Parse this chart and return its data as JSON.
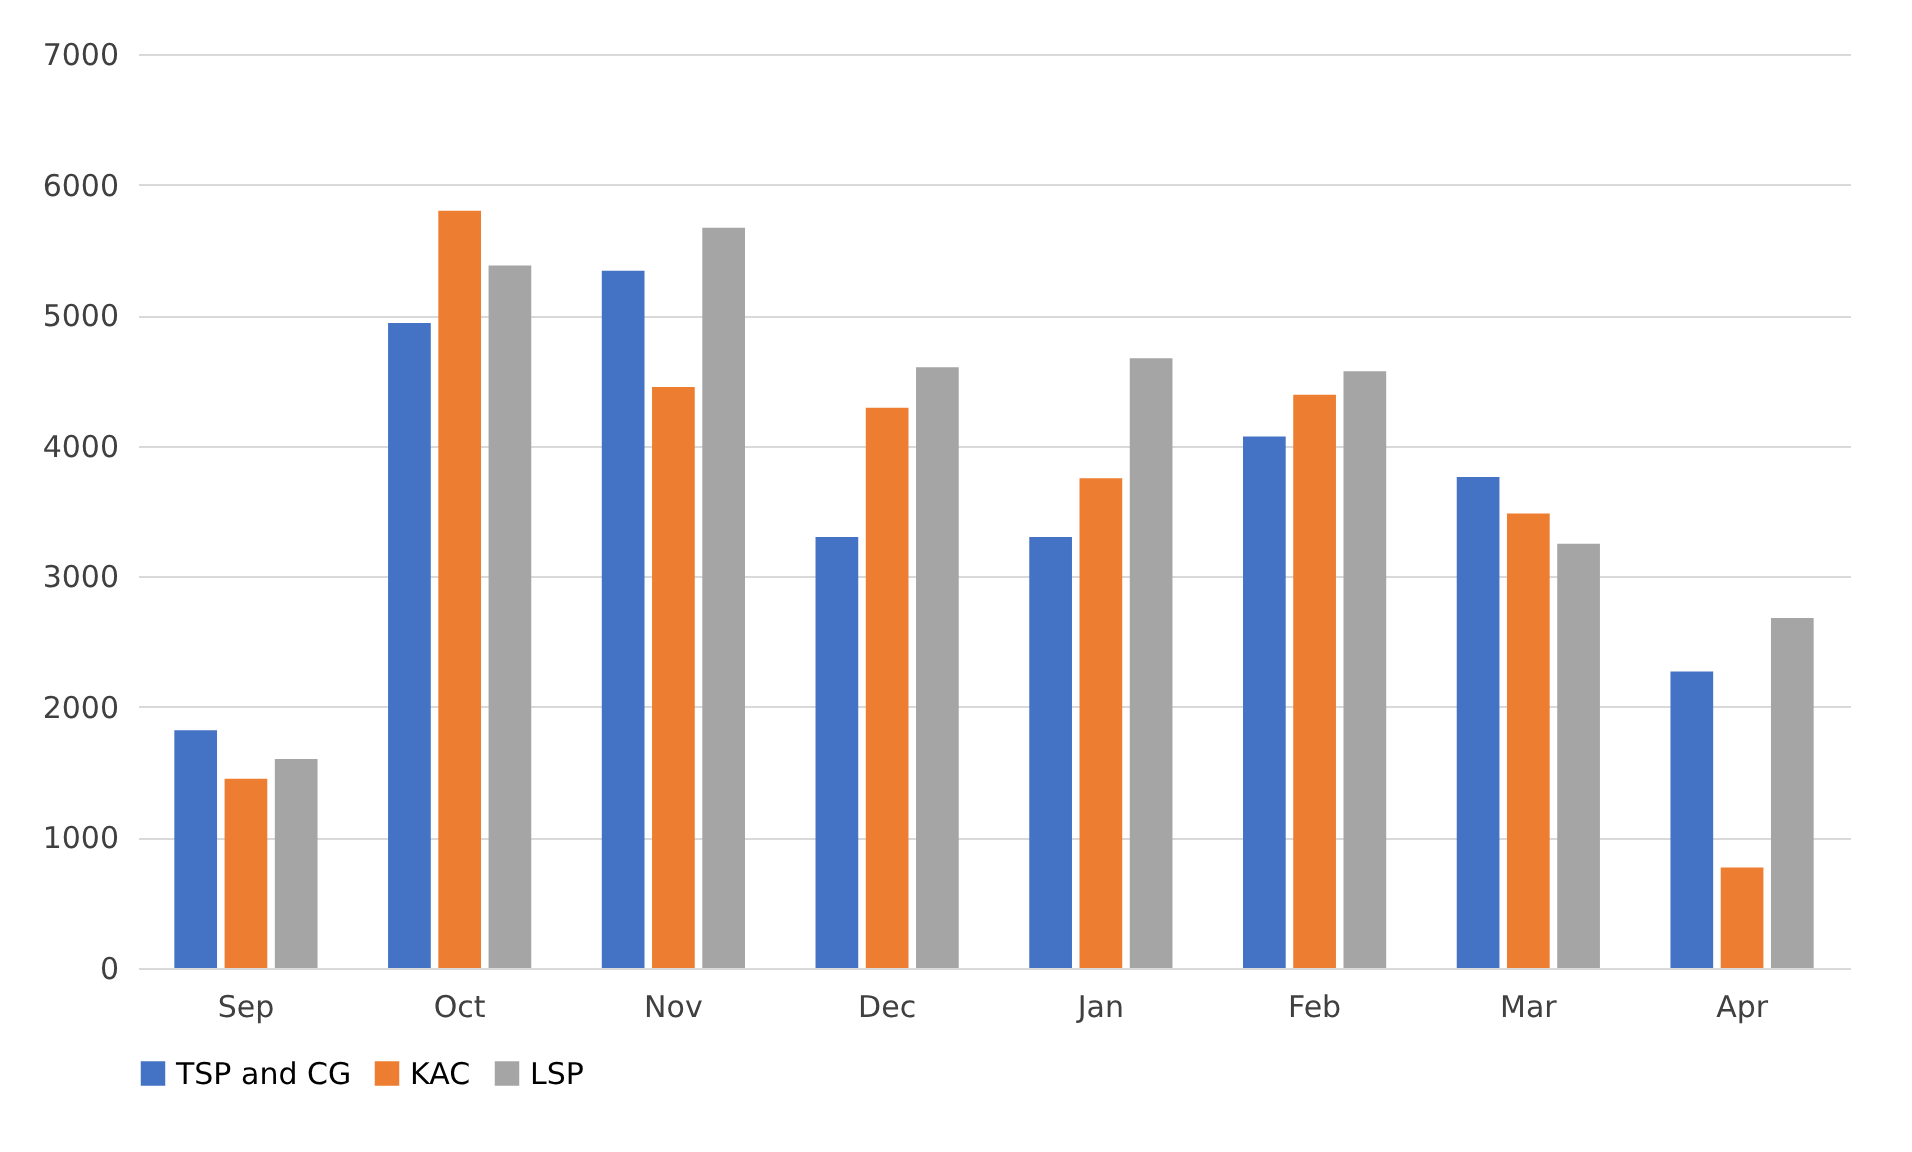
{
  "chart_data": {
    "type": "bar",
    "categories": [
      "Sep",
      "Oct",
      "Nov",
      "Dec",
      "Jan",
      "Feb",
      "Mar",
      "Apr"
    ],
    "series": [
      {
        "name": "TSP and CG",
        "color": "#4472c4",
        "values": [
          1820,
          4940,
          5340,
          3300,
          3300,
          4070,
          3760,
          2270
        ]
      },
      {
        "name": "KAC",
        "color": "#ed7d31",
        "values": [
          1450,
          5800,
          4450,
          4290,
          3750,
          4390,
          3480,
          770
        ]
      },
      {
        "name": "LSP",
        "color": "#a5a5a5",
        "values": [
          1600,
          5380,
          5670,
          4600,
          4670,
          4570,
          3250,
          2680
        ]
      }
    ],
    "ylim": [
      0,
      7000
    ],
    "yticks": [
      0,
      1000,
      2000,
      3000,
      4000,
      5000,
      6000,
      7000
    ],
    "grid": "y",
    "legend": "bottom"
  }
}
